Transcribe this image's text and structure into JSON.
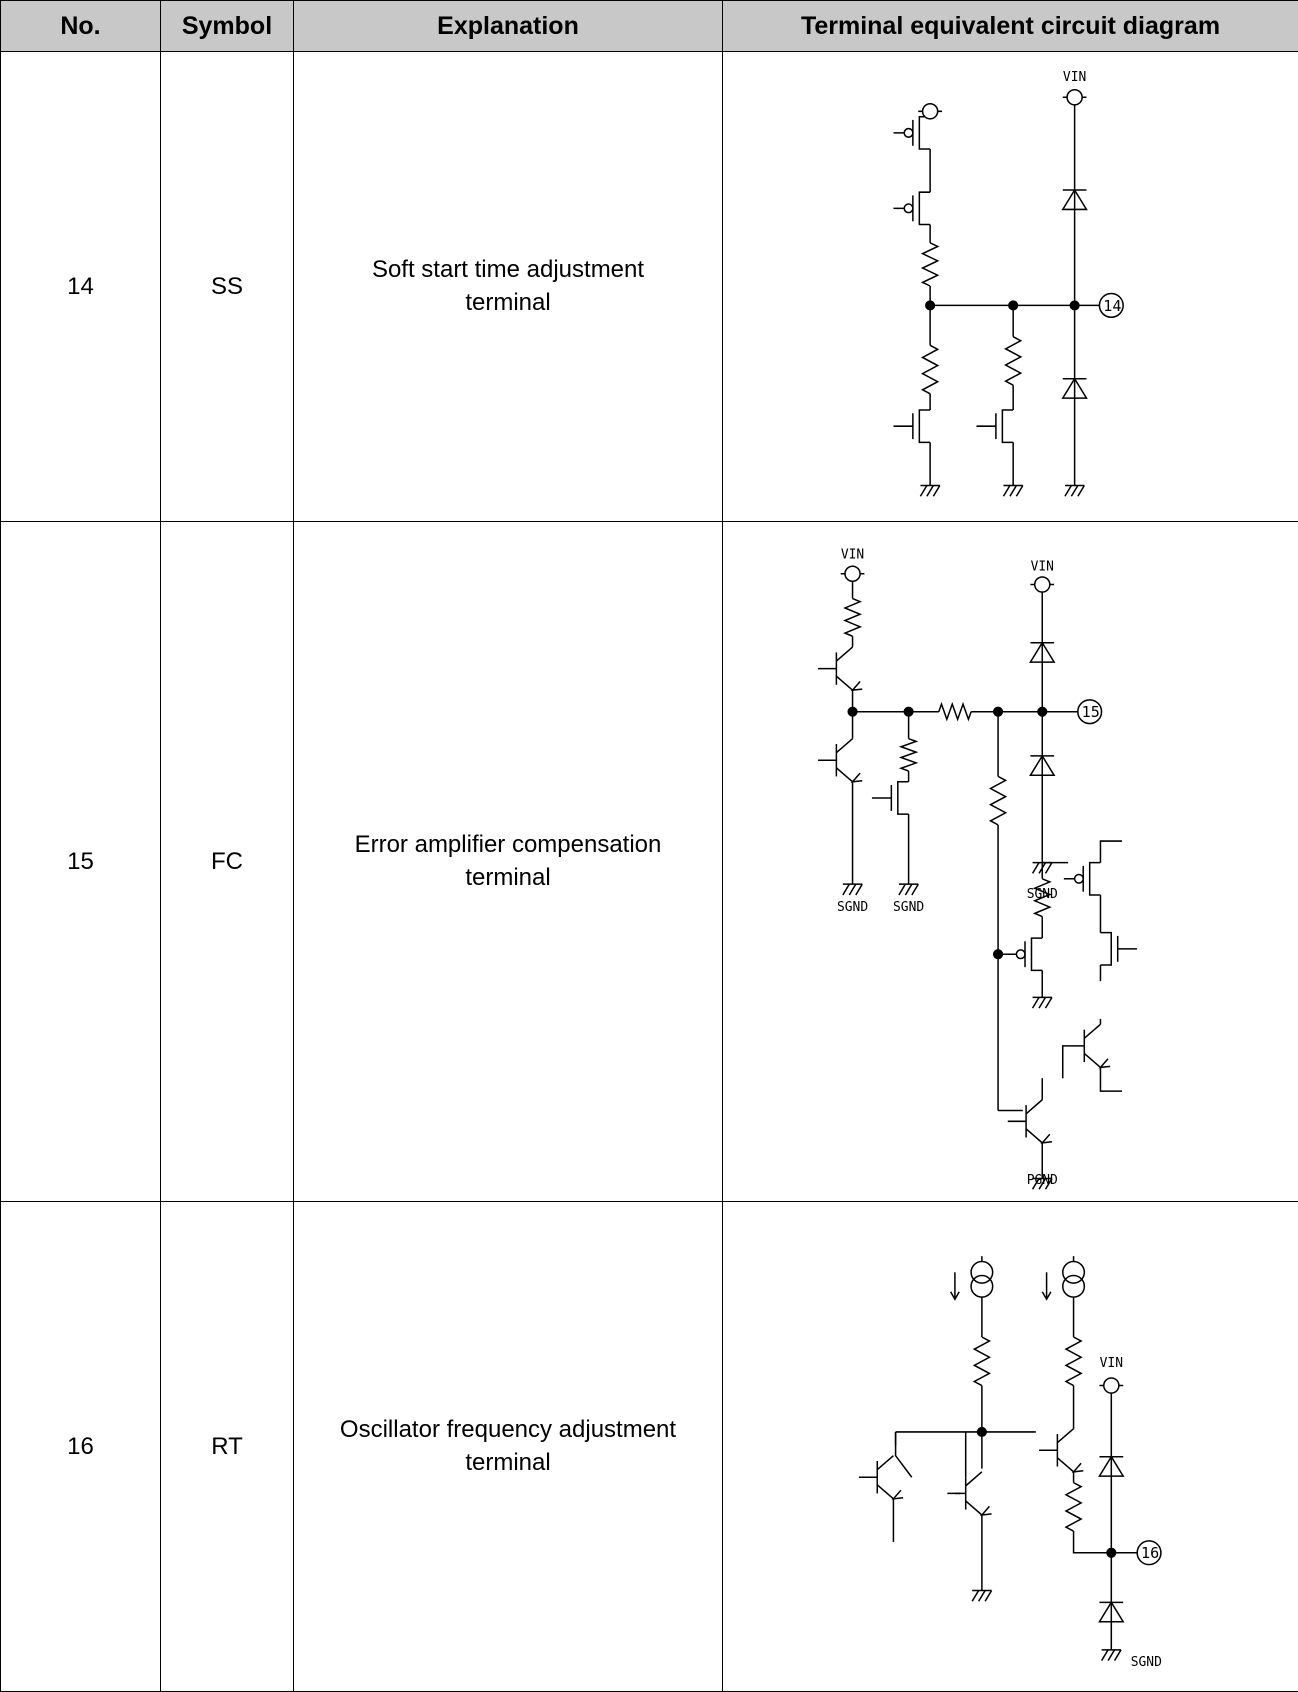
{
  "table": {
    "header": [
      "No.",
      "Symbol",
      "Explanation",
      "Terminal equivalent circuit diagram"
    ],
    "rows": [
      [
        "14",
        "SS",
        "Soft start time adjustment\nterminal"
      ],
      [
        "15",
        "FC",
        "Error amplifier compensation\nterminal"
      ],
      [
        "16",
        "RT",
        "Oscillator frequency adjustment\nterminal"
      ]
    ]
  },
  "diagrams": [
    {
      "labels": [
        "VIN",
        "14"
      ]
    },
    {
      "labels": [
        "VIN",
        "VIN",
        "SGND",
        "SGND",
        "SGND",
        "PGND",
        "15"
      ]
    },
    {
      "labels": [
        "VIN",
        "SGND",
        "16"
      ]
    }
  ]
}
